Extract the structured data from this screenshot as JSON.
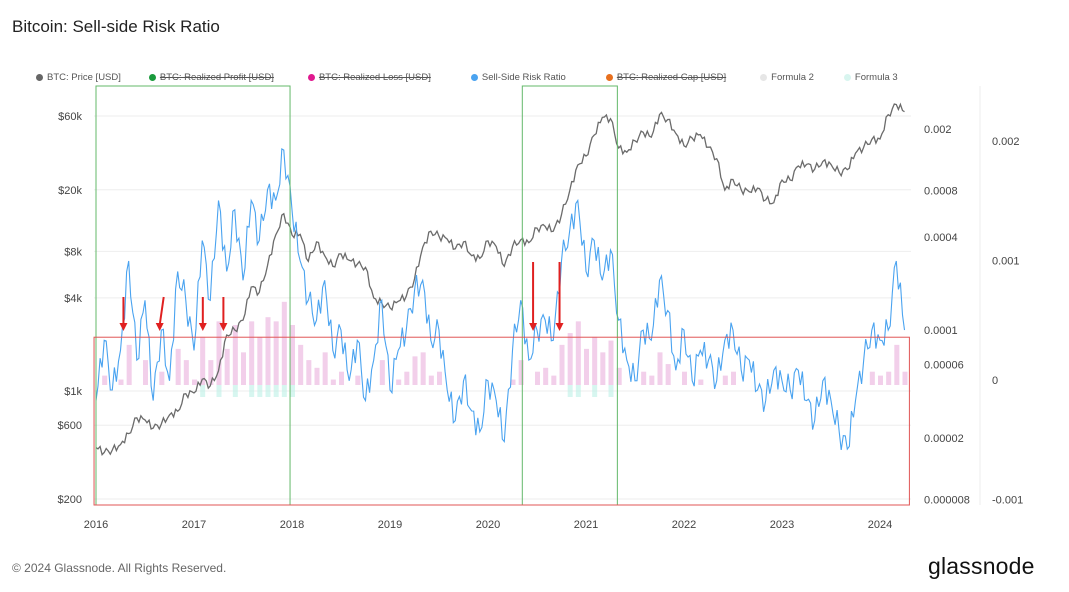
{
  "title": "Bitcoin: Sell-side Risk Ratio",
  "legend": [
    {
      "label": "BTC: Price [USD]",
      "color": "#666666",
      "hidden": false
    },
    {
      "label": "BTC: Realized Profit [USD]",
      "color": "#1a9a3c",
      "hidden": true
    },
    {
      "label": "BTC: Realized Loss [USD]",
      "color": "#e0198f",
      "hidden": true
    },
    {
      "label": "Sell-Side Risk Ratio",
      "color": "#4aa3f0",
      "hidden": false
    },
    {
      "label": "BTC: Realized Cap [USD]",
      "color": "#e8701e",
      "hidden": true
    },
    {
      "label": "Formula 2",
      "color": "#e6e6e6",
      "hidden": false
    },
    {
      "label": "Formula 3",
      "color": "#d8f5ef",
      "hidden": false
    }
  ],
  "footer": "© 2024 Glassnode. All Rights Reserved.",
  "logo": "glassnode",
  "chart_data": {
    "type": "line",
    "title": "Bitcoin: Sell-side Risk Ratio",
    "x_start": 2016.0,
    "x_step_months": 1,
    "x_ticks": [
      "2016",
      "2017",
      "2018",
      "2019",
      "2020",
      "2021",
      "2022",
      "2023",
      "2024"
    ],
    "left_axis": {
      "scale": "log",
      "ticks": [
        {
          "v": 200,
          "label": "$200"
        },
        {
          "v": 600,
          "label": "$600"
        },
        {
          "v": 1000,
          "label": "$1k"
        },
        {
          "v": 4000,
          "label": "$4k"
        },
        {
          "v": 8000,
          "label": "$8k"
        },
        {
          "v": 20000,
          "label": "$20k"
        },
        {
          "v": 60000,
          "label": "$60k"
        }
      ]
    },
    "risk_axis": {
      "scale": "log",
      "ticks": [
        {
          "v": 0.002,
          "label": "0.002"
        },
        {
          "v": 0.0008,
          "label": "0.0008"
        },
        {
          "v": 0.0004,
          "label": "0.0004"
        },
        {
          "v": 0.0001,
          "label": "0.0001"
        },
        {
          "v": 6e-05,
          "label": "0.00006"
        },
        {
          "v": 2e-05,
          "label": "0.00002"
        },
        {
          "v": 8e-06,
          "label": "0.000008"
        }
      ]
    },
    "right_axis": {
      "scale": "linear",
      "range": [
        -0.001,
        0.002
      ],
      "ticks": [
        {
          "v": 0.002,
          "label": "0.002"
        },
        {
          "v": 0.001,
          "label": "0.001"
        },
        {
          "v": 0,
          "label": "0"
        },
        {
          "v": -0.001,
          "label": "-0.001"
        }
      ]
    },
    "series": [
      {
        "name": "BTC: Price [USD]",
        "axis": "left",
        "color": "#6b6b6b",
        "values": [
          430,
          400,
          415,
          450,
          530,
          670,
          650,
          575,
          610,
          700,
          740,
          960,
          970,
          1190,
          1080,
          1350,
          2300,
          2480,
          2870,
          4700,
          4340,
          6470,
          10200,
          14000,
          10200,
          10300,
          6900,
          9200,
          7500,
          6400,
          7700,
          7000,
          6600,
          6300,
          4000,
          3700,
          3450,
          3800,
          4100,
          5300,
          8500,
          10800,
          10000,
          9600,
          8300,
          9200,
          7500,
          7200,
          9350,
          8600,
          6400,
          8600,
          9500,
          9100,
          11300,
          11600,
          10800,
          13800,
          19700,
          29000,
          33100,
          45200,
          58800,
          57700,
          37300,
          35000,
          41500,
          47100,
          43800,
          61300,
          57000,
          46300,
          38500,
          43200,
          45500,
          37700,
          31800,
          19900,
          23300,
          20000,
          19400,
          20500,
          17200,
          16500,
          23100,
          23100,
          28500,
          29200,
          27200,
          30500,
          29200,
          25900,
          27000,
          34500,
          37700,
          42300,
          42600,
          61200,
          71300,
          64000
        ]
      },
      {
        "name": "Sell-Side Risk Ratio",
        "axis": "risk",
        "color": "#4aa3f0",
        "values": [
          3.5e-05,
          8.6e-05,
          4.1e-05,
          7.4e-05,
          0.00028,
          6.4e-05,
          0.000156,
          3.5e-05,
          0.0001,
          4.7e-05,
          0.00024,
          0.000156,
          7.4e-05,
          0.00038,
          0.000156,
          0.00069,
          0.00024,
          0.0006,
          0.00021,
          0.00069,
          0.00038,
          0.00081,
          0.00069,
          0.00146,
          0.0006,
          0.00028,
          0.000156,
          0.000116,
          0.00021,
          7.4e-05,
          0.0001,
          4.7e-05,
          8.6e-05,
          3.5e-05,
          6.4e-05,
          0.000156,
          4.1e-05,
          7.4e-05,
          0.0001,
          0.00018,
          0.00021,
          8.6e-05,
          0.0001,
          4.1e-05,
          2.6e-05,
          4.7e-05,
          3e-05,
          2.2e-05,
          4.7e-05,
          3.5e-05,
          1.9e-05,
          7.4e-05,
          0.000156,
          6.4e-05,
          0.0001,
          0.000116,
          8.6e-05,
          0.00028,
          0.00044,
          0.00069,
          0.00024,
          0.00038,
          0.00021,
          0.00033,
          0.000116,
          6.4e-05,
          4.7e-05,
          0.0001,
          8.6e-05,
          0.00021,
          0.000134,
          5.5e-05,
          0.0001,
          4.7e-05,
          7.4e-05,
          6.4e-05,
          4.7e-05,
          8.6e-05,
          0.0001,
          5.5e-05,
          6.4e-05,
          4.1e-05,
          3.5e-05,
          5.5e-05,
          4.7e-05,
          4.1e-05,
          5.5e-05,
          3.5e-05,
          2.6e-05,
          4.7e-05,
          3.5e-05,
          2.2e-05,
          1.7e-05,
          3.5e-05,
          6.4e-05,
          0.0001,
          8.6e-05,
          0.0001,
          0.00028,
          0.0001
        ]
      }
    ],
    "annotations": {
      "green_boxes": [
        {
          "from": 2016.0,
          "to": 2017.98
        },
        {
          "from": 2020.35,
          "to": 2021.32
        }
      ],
      "red_box": {
        "from": 2015.98,
        "to": 2024.3,
        "risk_level": 9e-05
      },
      "red_arrows": [
        2016.28,
        2016.65,
        2017.09,
        2017.3,
        2020.46,
        2020.73
      ]
    }
  }
}
